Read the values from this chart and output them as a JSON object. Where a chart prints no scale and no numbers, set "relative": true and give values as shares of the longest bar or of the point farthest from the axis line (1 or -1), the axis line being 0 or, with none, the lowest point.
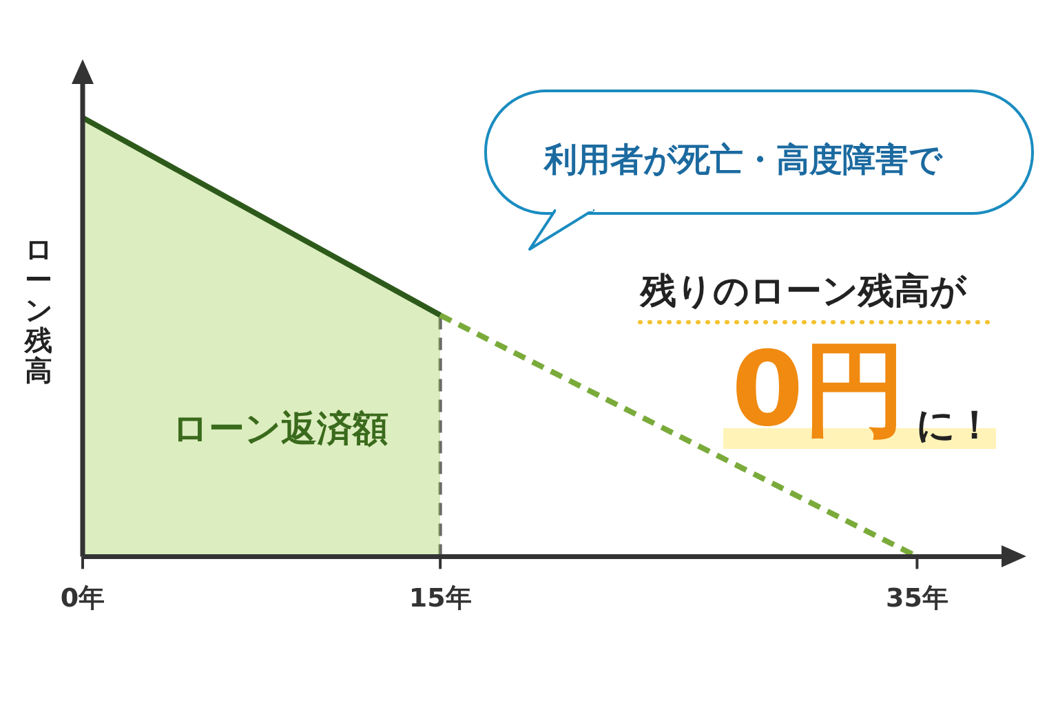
{
  "chart_data": {
    "type": "area",
    "relative": true,
    "ylabel": "ローン残高",
    "xlim": [
      0,
      38.6
    ],
    "xticks": [
      {
        "value": 0,
        "label": "0年"
      },
      {
        "value": 15,
        "label": "15年"
      },
      {
        "value": 35,
        "label": "35年"
      }
    ],
    "series": [
      {
        "type": "area",
        "x": [
          0,
          15
        ],
        "values": [
          1,
          0.55
        ],
        "color": "#2d5a1b",
        "line_style": "solid"
      },
      {
        "type": "line",
        "x": [
          15,
          35
        ],
        "values": [
          0.55,
          0
        ],
        "color": "#7aab3a",
        "line_style": "dashed"
      }
    ],
    "ref_lines": [
      {
        "axis": "x",
        "value": 15,
        "color": "#666666",
        "line_style": "dashed"
      }
    ],
    "annotations": [
      "ローン返済額",
      "利用者が死亡・高度障害で",
      "残りのローン残高が",
      "0円",
      "に！"
    ],
    "grid": false,
    "legend": false,
    "marker": "none"
  }
}
